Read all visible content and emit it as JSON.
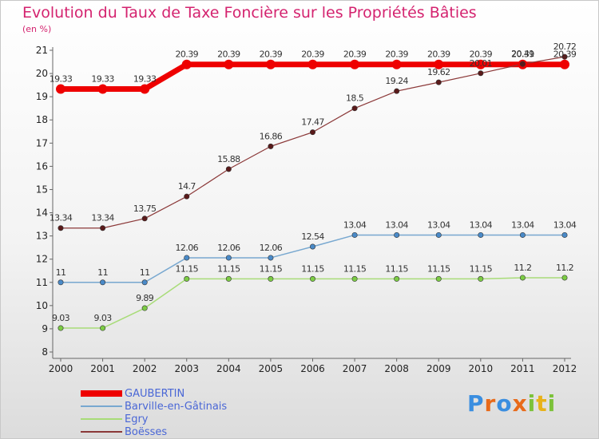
{
  "header": {
    "title": "Evolution du Taux de Taxe Foncière sur les Propriétés Bâties",
    "unit_label": "(en %)"
  },
  "chart_data": {
    "type": "line",
    "title": "Evolution du Taux de Taxe Foncière sur les Propriétés Bâties",
    "ylabel": "(en %)",
    "xlabel": "",
    "x": [
      "2000",
      "2001",
      "2002",
      "2003",
      "2004",
      "2005",
      "2006",
      "2007",
      "2008",
      "2009",
      "2010",
      "2011",
      "2012"
    ],
    "ylim": [
      8,
      21
    ],
    "yticks": [
      "8",
      "9",
      "10",
      "11",
      "12",
      "13",
      "14",
      "15",
      "16",
      "17",
      "18",
      "19",
      "20",
      "21"
    ],
    "grid": false,
    "series": [
      {
        "name": "GAUBERTIN",
        "color": "#ee0000",
        "point_color": "#ee0000",
        "width": 7,
        "values": [
          19.33,
          19.33,
          19.33,
          20.39,
          20.39,
          20.39,
          20.39,
          20.39,
          20.39,
          20.39,
          20.39,
          20.39,
          20.39
        ],
        "labels": [
          "19.33",
          "19.33",
          "19.33",
          "20.39",
          "20.39",
          "20.39",
          "20.39",
          "20.39",
          "20.39",
          "20.39",
          "20.39",
          "20.39",
          "20.39"
        ]
      },
      {
        "name": "Barville-en-Gâtinais",
        "color": "#78a8d0",
        "point_color": "#4a8ac8",
        "width": 1.5,
        "values": [
          11,
          11,
          11,
          12.06,
          12.06,
          12.06,
          12.54,
          13.04,
          13.04,
          13.04,
          13.04,
          13.04,
          13.04
        ],
        "labels": [
          "11",
          "11",
          "11",
          "12.06",
          "12.06",
          "12.06",
          "12.54",
          "13.04",
          "13.04",
          "13.04",
          "13.04",
          "13.04",
          "13.04"
        ]
      },
      {
        "name": "Egry",
        "color": "#a8dc78",
        "point_color": "#7ccc44",
        "width": 1.5,
        "values": [
          9.03,
          9.03,
          9.89,
          11.15,
          11.15,
          11.15,
          11.15,
          11.15,
          11.15,
          11.15,
          11.15,
          11.2,
          11.2
        ],
        "labels": [
          "9.03",
          "9.03",
          "9.89",
          "11.15",
          "11.15",
          "11.15",
          "11.15",
          "11.15",
          "11.15",
          "11.15",
          "11.15",
          "11.2",
          "11.2"
        ]
      },
      {
        "name": "Boësses",
        "color": "#8b3838",
        "point_color": "#5a1a1a",
        "width": 1.2,
        "values": [
          13.34,
          13.34,
          13.75,
          14.7,
          15.88,
          16.86,
          17.47,
          18.5,
          19.24,
          19.62,
          20.01,
          20.41,
          20.72
        ],
        "labels": [
          "13.34",
          "13.34",
          "13.75",
          "14.7",
          "15.88",
          "16.86",
          "17.47",
          "18.5",
          "19.24",
          "19.62",
          "20.01",
          "20.41",
          "20.72"
        ]
      }
    ],
    "legend_position": "bottom-left"
  },
  "logo": {
    "letters": [
      "P",
      "r",
      "o",
      "x",
      "i",
      "t",
      "i"
    ],
    "colors": [
      "#3a8ee0",
      "#e86a1a",
      "#3a8ee0",
      "#e86a1a",
      "#7cc23a",
      "#e8b21a",
      "#7cc23a"
    ]
  }
}
